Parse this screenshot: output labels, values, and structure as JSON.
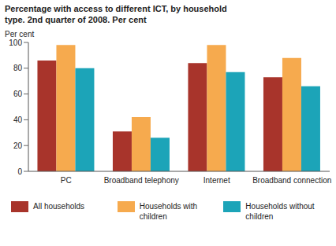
{
  "chart_data": {
    "type": "bar",
    "title": "Percentage with access to different ICT, by household type. 2nd quarter of 2008. Per cent",
    "y_label": "Per cent",
    "categories": [
      "PC",
      "Broadband telephony",
      "Internet",
      "Broadband connection"
    ],
    "series": [
      {
        "name": "All households",
        "color": "#a8342b",
        "values": [
          86,
          31,
          84,
          73
        ]
      },
      {
        "name": "Households with children",
        "color": "#f6aa4e",
        "values": [
          98,
          42,
          98,
          88
        ]
      },
      {
        "name": "Households without children",
        "color": "#1ca4b8",
        "values": [
          80,
          26,
          77,
          66
        ]
      }
    ],
    "ylim": [
      0,
      100
    ],
    "yticks": [
      0,
      20,
      40,
      60,
      80,
      100
    ],
    "grid": false,
    "legend": "bottom"
  }
}
